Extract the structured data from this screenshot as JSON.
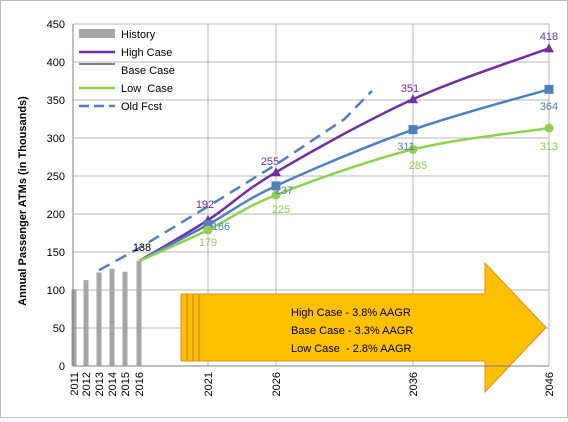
{
  "chart_data": {
    "type": "line",
    "ylabel": "Annual Passenger ATMs (in Thousands)",
    "xlabel": "",
    "ylim": [
      0,
      450
    ],
    "yticks": [
      0,
      50,
      100,
      150,
      200,
      250,
      300,
      350,
      400,
      450
    ],
    "xticks": [
      2011,
      2012,
      2013,
      2014,
      2015,
      2016,
      2021,
      2026,
      2036,
      2046
    ],
    "grid": true,
    "legend_position": "top-left",
    "history": {
      "name": "History",
      "color": "#a6a6a6",
      "x": [
        2011,
        2012,
        2013,
        2014,
        2015,
        2016
      ],
      "values": [
        101,
        113,
        123,
        128,
        124,
        138
      ]
    },
    "series": [
      {
        "name": "High Case",
        "color": "#7030a0",
        "marker": "triangle",
        "x": [
          2016,
          2021,
          2026,
          2036,
          2046
        ],
        "values": [
          138,
          192,
          255,
          351,
          418
        ],
        "labels": [
          "",
          "192",
          "255",
          "351",
          "418"
        ]
      },
      {
        "name": "Base Case",
        "color": "#4f81bd",
        "marker": "square",
        "x": [
          2016,
          2021,
          2026,
          2036,
          2046
        ],
        "values": [
          138,
          186,
          237,
          311,
          364
        ],
        "labels": [
          "138",
          "186",
          "237",
          "311",
          "364"
        ]
      },
      {
        "name": "Low  Case",
        "color": "#92d050",
        "marker": "circle",
        "x": [
          2016,
          2021,
          2026,
          2036,
          2046
        ],
        "values": [
          138,
          179,
          225,
          285,
          313
        ],
        "labels": [
          "",
          "179",
          "225",
          "285",
          "313"
        ]
      },
      {
        "name": "Old Fcst",
        "color": "#4f81bd",
        "dashed": true,
        "x": [
          2013,
          2016,
          2021,
          2026,
          2031,
          2033
        ],
        "values": [
          126,
          155,
          210,
          265,
          325,
          362
        ]
      }
    ],
    "annotations": [
      "High Case - 3.8% AAGR",
      "Base Case - 3.3% AAGR",
      "Low Case  - 2.8% AAGR"
    ]
  },
  "colors": {
    "arrow_fill": "#ffc000",
    "arrow_stroke": "#e98b17",
    "grid": "#b8b8b8",
    "axis_text": "#000000"
  }
}
